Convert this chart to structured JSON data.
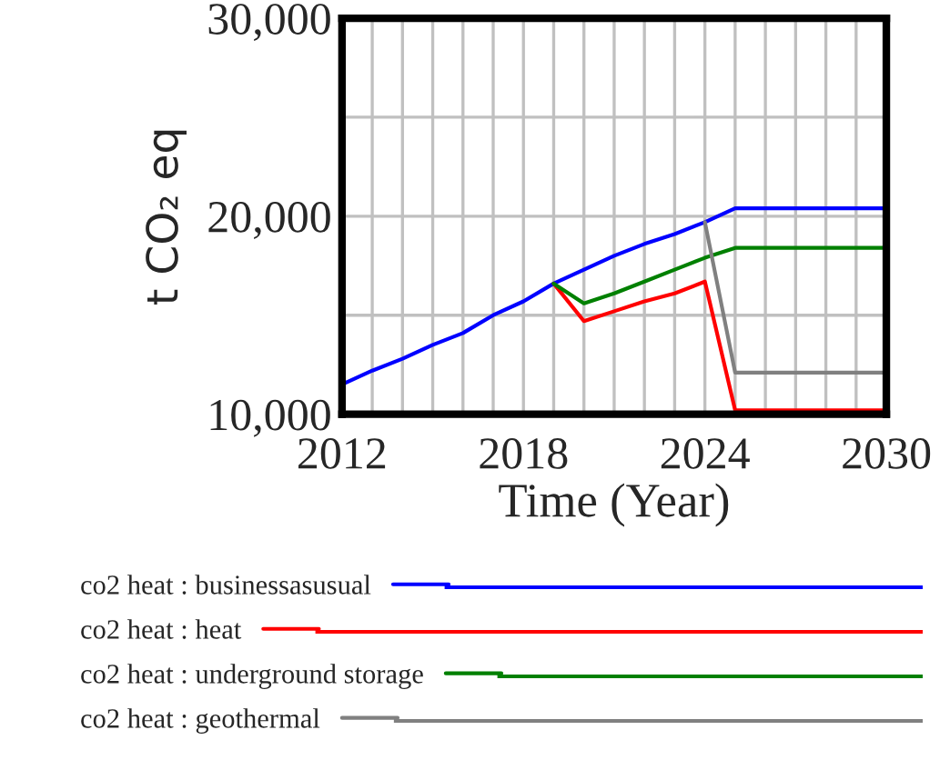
{
  "chart_data": {
    "type": "line",
    "xlabel": "Time (Year)",
    "ylabel": "t CO₂ eq",
    "xlim": [
      2012,
      2030
    ],
    "ylim": [
      10000,
      30000
    ],
    "xticks": [
      2012,
      {
        "value": 2013,
        "label": null
      },
      {
        "value": 2014,
        "label": null
      },
      {
        "value": 2015,
        "label": null
      },
      {
        "value": 2016,
        "label": null
      },
      {
        "value": 2017,
        "label": null
      },
      2018,
      {
        "value": 2019,
        "label": null
      },
      {
        "value": 2020,
        "label": null
      },
      {
        "value": 2021,
        "label": null
      },
      {
        "value": 2022,
        "label": null
      },
      {
        "value": 2023,
        "label": null
      },
      2024,
      {
        "value": 2025,
        "label": null
      },
      {
        "value": 2026,
        "label": null
      },
      {
        "value": 2027,
        "label": null
      },
      {
        "value": 2028,
        "label": null
      },
      {
        "value": 2029,
        "label": null
      },
      2030
    ],
    "yticks": [
      {
        "value": 10000,
        "label": "10,000"
      },
      {
        "value": 15000,
        "label": null
      },
      {
        "value": 20000,
        "label": "20,000"
      },
      {
        "value": 25000,
        "label": null
      },
      {
        "value": 30000,
        "label": "30,000"
      }
    ],
    "grid": true,
    "legend": "bottom",
    "series": [
      {
        "name": "co2 heat : businessasusual",
        "color": "#0000ff",
        "x": [
          2012,
          2013,
          2014,
          2015,
          2016,
          2017,
          2018,
          2019,
          2020,
          2021,
          2022,
          2023,
          2024,
          2025,
          2030
        ],
        "values": [
          11500,
          12200,
          12800,
          13500,
          14100,
          15000,
          15700,
          16600,
          17300,
          18000,
          18600,
          19100,
          19700,
          20400,
          20400
        ]
      },
      {
        "name": "co2 heat : heat",
        "color": "#ff0000",
        "x": [
          2019,
          2020,
          2021,
          2022,
          2023,
          2024,
          2025,
          2030
        ],
        "values": [
          16600,
          14700,
          15200,
          15700,
          16100,
          16700,
          10200,
          10200
        ]
      },
      {
        "name": "co2 heat : underground storage",
        "color": "#008000",
        "x": [
          2019,
          2020,
          2021,
          2022,
          2023,
          2024,
          2025,
          2030
        ],
        "values": [
          16600,
          15600,
          16100,
          16700,
          17300,
          17900,
          18400,
          18400
        ]
      },
      {
        "name": "co2 heat : geothermal",
        "color": "#808080",
        "x": [
          2024,
          2025,
          2030
        ],
        "values": [
          19700,
          12100,
          12100
        ]
      }
    ]
  }
}
